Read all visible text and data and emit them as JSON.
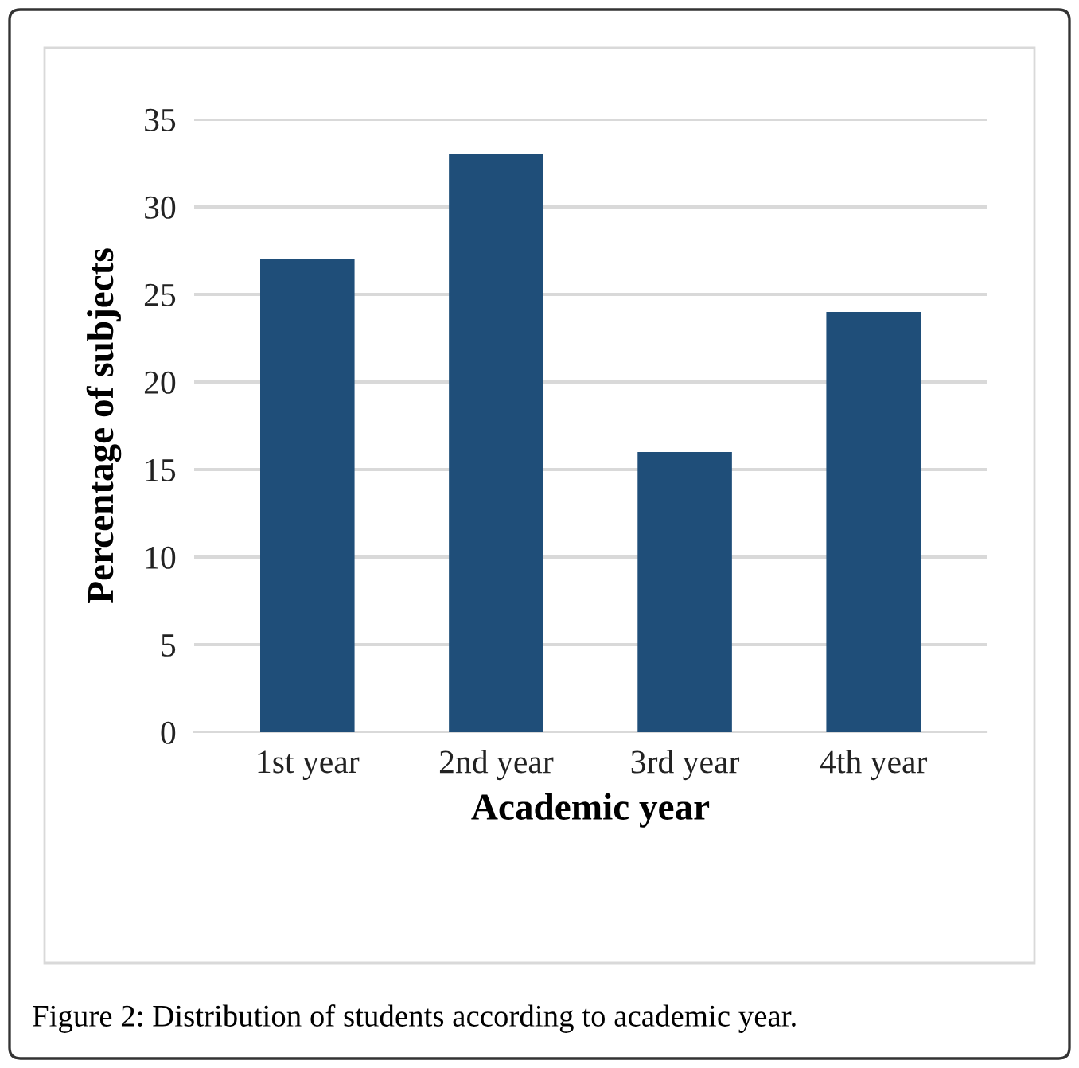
{
  "chart_data": {
    "type": "bar",
    "xlabel": "Academic year",
    "ylabel": "Percentage of subjects",
    "categories": [
      "1st year",
      "2nd year",
      "3rd year",
      "4th year"
    ],
    "values": [
      27,
      33,
      16,
      24
    ],
    "color": "#1f4e79",
    "ylim": [
      0,
      35
    ],
    "yticks": [
      0,
      5,
      10,
      15,
      20,
      25,
      30,
      35
    ],
    "grid": "y",
    "annotations": [
      "Figure 2: Distribution of students according to academic year."
    ]
  }
}
